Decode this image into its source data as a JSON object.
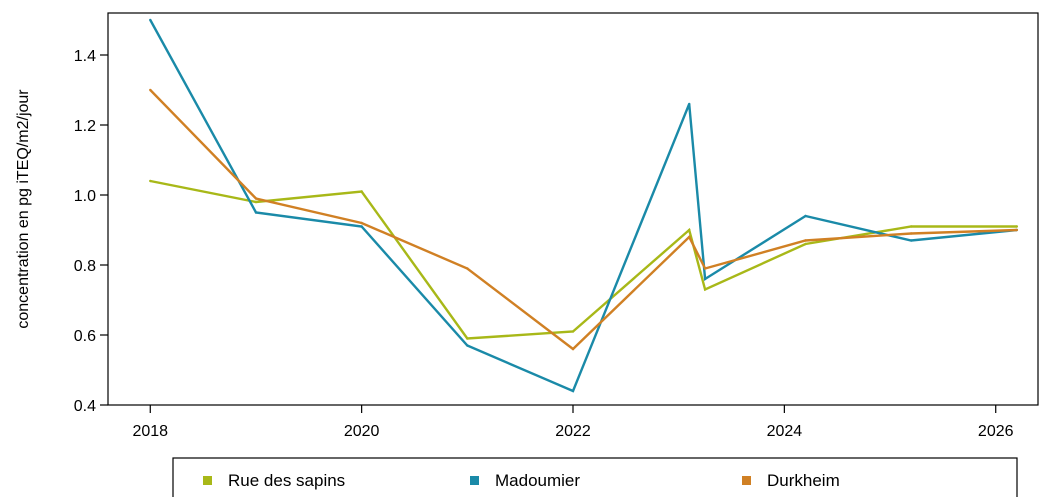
{
  "chart_data": {
    "type": "line",
    "title": "",
    "xlabel": "",
    "ylabel": "concentration en pg iTEQ/m2/jour",
    "xlim": [
      2017.6,
      2026.4
    ],
    "ylim": [
      0.4,
      1.52
    ],
    "x_ticks": [
      2018,
      2020,
      2022,
      2024,
      2026
    ],
    "y_ticks": [
      0.4,
      0.6,
      0.8,
      1.0,
      1.2,
      1.4
    ],
    "x_tick_labels": [
      "2018",
      "2020",
      "2022",
      "2024",
      "2026"
    ],
    "y_tick_labels": [
      "0.4",
      "0.6",
      "0.8",
      "1.0",
      "1.2",
      "1.4"
    ],
    "grid": false,
    "legend_position": "bottom",
    "series": [
      {
        "name": "Rue des sapins",
        "color": "#a8b818",
        "x": [
          2018,
          2019,
          2020,
          2021,
          2022,
          2023.1,
          2023.25,
          2024.2,
          2025.2,
          2026.2
        ],
        "y": [
          1.04,
          0.98,
          1.01,
          0.59,
          0.61,
          0.9,
          0.73,
          0.86,
          0.91,
          0.91
        ]
      },
      {
        "name": "Madoumier",
        "color": "#1a8aa8",
        "x": [
          2018,
          2019,
          2020,
          2021,
          2022,
          2023.1,
          2023.25,
          2024.2,
          2025.2,
          2026.2
        ],
        "y": [
          1.5,
          0.95,
          0.91,
          0.57,
          0.44,
          1.26,
          0.76,
          0.94,
          0.87,
          0.9
        ]
      },
      {
        "name": "Durkheim",
        "color": "#d08024",
        "x": [
          2018,
          2019,
          2020,
          2021,
          2022,
          2023.1,
          2023.25,
          2024.2,
          2025.2,
          2026.2
        ],
        "y": [
          1.3,
          0.99,
          0.92,
          0.79,
          0.56,
          0.88,
          0.79,
          0.87,
          0.89,
          0.9
        ]
      }
    ]
  }
}
